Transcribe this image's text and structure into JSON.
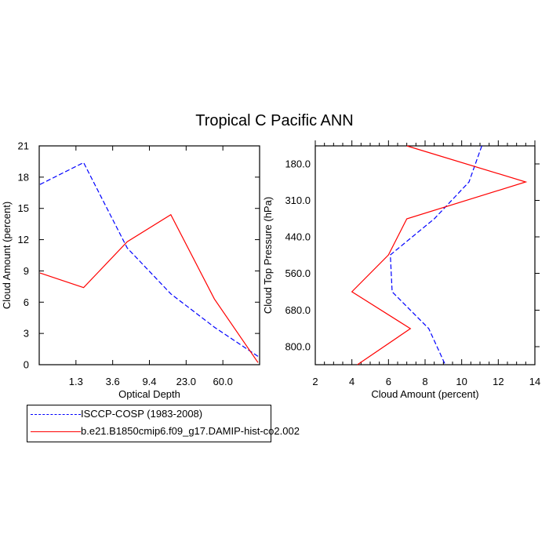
{
  "title": "Tropical C Pacific ANN",
  "colors": {
    "series1": "#0000ff",
    "series2": "#ff0000",
    "axis": "#000000"
  },
  "chart_data": [
    {
      "type": "line",
      "xlabel": "Optical Depth",
      "ylabel": "Cloud Amount (percent)",
      "x_tick_labels": [
        "1.3",
        "3.6",
        "9.4",
        "23.0",
        "60.0"
      ],
      "x_positions": [
        0,
        1,
        2,
        3,
        4,
        5,
        6
      ],
      "ylim": [
        0,
        21
      ],
      "y_ticks": [
        0,
        3,
        6,
        9,
        12,
        15,
        18,
        21
      ],
      "series": [
        {
          "name": "ISCCP-COSP (1983-2008)",
          "style": "dashed",
          "values": [
            17.3,
            19.4,
            11.2,
            6.8,
            3.6,
            0.8
          ]
        },
        {
          "name": "b.e21.B1850cmip6.f09_g17.DAMIP-hist-co2.002",
          "style": "solid",
          "values": [
            8.8,
            7.4,
            11.8,
            14.4,
            6.3,
            0.2
          ]
        }
      ]
    },
    {
      "type": "line",
      "xlabel": "Cloud Amount (percent)",
      "ylabel": "Cloud Top Pressure (hPa)",
      "xlim": [
        2,
        14
      ],
      "x_ticks": [
        2,
        4,
        6,
        8,
        10,
        12,
        14
      ],
      "y_tick_labels": [
        "180.0",
        "310.0",
        "440.0",
        "560.0",
        "680.0",
        "800.0"
      ],
      "series": [
        {
          "name": "ISCCP-COSP (1983-2008)",
          "style": "dashed",
          "points": [
            [
              11.1,
              0
            ],
            [
              10.4,
              1
            ],
            [
              8.5,
              2
            ],
            [
              6.1,
              3
            ],
            [
              6.2,
              4
            ],
            [
              8.2,
              5
            ],
            [
              9.1,
              6
            ]
          ]
        },
        {
          "name": "b.e21.B1850cmip6.f09_g17.DAMIP-hist-co2.002",
          "style": "solid",
          "points": [
            [
              7.0,
              0
            ],
            [
              13.5,
              1
            ],
            [
              7.0,
              2
            ],
            [
              6.0,
              3
            ],
            [
              4.0,
              4
            ],
            [
              7.2,
              5
            ],
            [
              4.3,
              6
            ]
          ]
        }
      ]
    }
  ],
  "legend": [
    {
      "label": "ISCCP-COSP (1983-2008)"
    },
    {
      "label": "b.e21.B1850cmip6.f09_g17.DAMIP-hist-co2.002"
    }
  ]
}
